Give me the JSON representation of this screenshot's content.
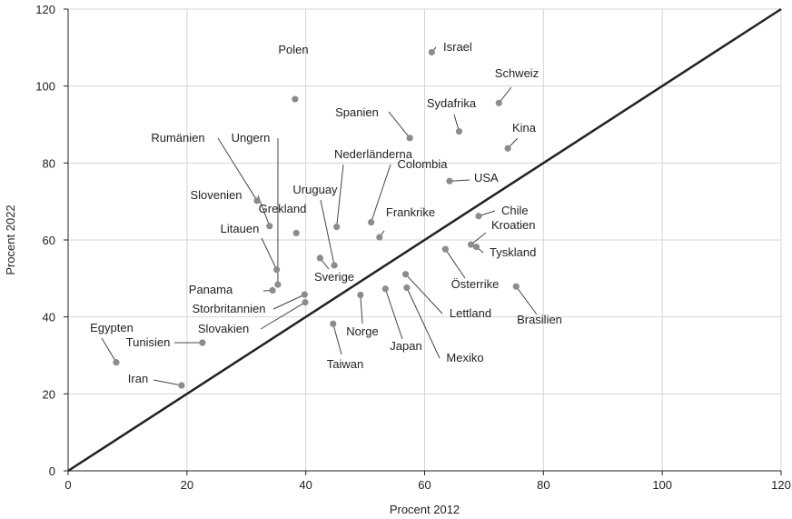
{
  "chart_data": {
    "type": "scatter",
    "xlabel": "Procent 2012",
    "ylabel": "Procent 2022",
    "xlim": [
      0,
      120
    ],
    "ylim": [
      0,
      120
    ],
    "xticks": [
      0,
      20,
      40,
      60,
      80,
      100,
      120
    ],
    "yticks": [
      0,
      20,
      40,
      60,
      80,
      100,
      120
    ],
    "grid": true,
    "reference_line": {
      "x": [
        0,
        120
      ],
      "y": [
        0,
        120
      ],
      "color": "#222222"
    },
    "colors": {
      "point": "#8c8c8c",
      "grid": "#d4d4d4",
      "axis": "#222222",
      "leader": "#444444"
    },
    "points": [
      {
        "label": "Israel",
        "x": 61.2,
        "y": 108.8
      },
      {
        "label": "Polen",
        "x": 38.2,
        "y": 96.6
      },
      {
        "label": "Schweiz",
        "x": 72.5,
        "y": 95.6
      },
      {
        "label": "Spanien",
        "x": 57.5,
        "y": 86.5
      },
      {
        "label": "Sydafrika",
        "x": 65.8,
        "y": 88.2
      },
      {
        "label": "Kina",
        "x": 74.0,
        "y": 83.8
      },
      {
        "label": "Rumänien",
        "x": 31.8,
        "y": 70.2
      },
      {
        "label": "Ungern",
        "x": 35.3,
        "y": 48.4
      },
      {
        "label": "Nederländerna",
        "x": 45.2,
        "y": 63.4
      },
      {
        "label": "Colombia",
        "x": 51.0,
        "y": 64.6
      },
      {
        "label": "USA",
        "x": 64.2,
        "y": 75.3
      },
      {
        "label": "Slovenien",
        "x": 33.9,
        "y": 63.6
      },
      {
        "label": "Uruguay",
        "x": 44.8,
        "y": 53.4
      },
      {
        "label": "Grekland",
        "x": 38.4,
        "y": 61.8
      },
      {
        "label": "Frankrike",
        "x": 52.4,
        "y": 60.7
      },
      {
        "label": "Chile",
        "x": 69.1,
        "y": 66.2
      },
      {
        "label": "Kroatien",
        "x": 67.8,
        "y": 58.8
      },
      {
        "label": "Tyskland",
        "x": 68.7,
        "y": 58.2
      },
      {
        "label": "Litauen",
        "x": 35.1,
        "y": 52.3
      },
      {
        "label": "Sverige",
        "x": 42.4,
        "y": 55.3
      },
      {
        "label": "Österrike",
        "x": 63.5,
        "y": 57.6
      },
      {
        "label": "Panama",
        "x": 34.4,
        "y": 46.9
      },
      {
        "label": "Storbritannien",
        "x": 39.8,
        "y": 45.8
      },
      {
        "label": "Slovakien",
        "x": 39.9,
        "y": 43.8
      },
      {
        "label": "Lettland",
        "x": 56.8,
        "y": 51.1
      },
      {
        "label": "Brasilien",
        "x": 75.4,
        "y": 47.9
      },
      {
        "label": "Norge",
        "x": 49.2,
        "y": 45.7
      },
      {
        "label": "Japan",
        "x": 53.4,
        "y": 47.3
      },
      {
        "label": "Mexiko",
        "x": 57.0,
        "y": 47.6
      },
      {
        "label": "Taiwan",
        "x": 44.6,
        "y": 38.2
      },
      {
        "label": "Egypten",
        "x": 8.1,
        "y": 28.2
      },
      {
        "label": "Tunisien",
        "x": 22.6,
        "y": 33.3
      },
      {
        "label": "Iran",
        "x": 19.1,
        "y": 22.2
      }
    ]
  }
}
